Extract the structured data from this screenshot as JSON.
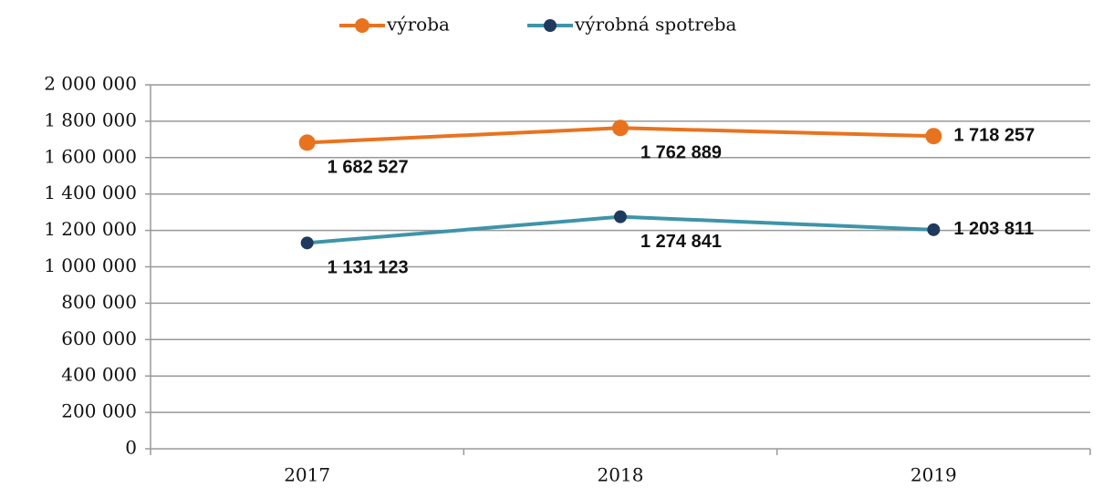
{
  "chart_data": {
    "type": "line",
    "categories": [
      "2017",
      "2018",
      "2019"
    ],
    "series": [
      {
        "name": "výroba",
        "color": "#e8731f",
        "marker_color": "#e8731f",
        "values": [
          1682527,
          1762889,
          1718257
        ],
        "value_labels": [
          "1 682 527",
          "1 762 889",
          "1 718 257"
        ]
      },
      {
        "name": "výrobná spotreba",
        "color": "#3f94a8",
        "marker_color": "#1f3a5f",
        "values": [
          1131123,
          1274841,
          1203811
        ],
        "value_labels": [
          "1 131 123",
          "1 274 841",
          "1 203 811"
        ]
      }
    ],
    "ylim": [
      0,
      2000000
    ],
    "yticks": [
      0,
      {
        "value": 200000,
        "label": "200 000"
      },
      {
        "value": 400000,
        "label": "400 000"
      },
      {
        "value": 600000,
        "label": "600 000"
      },
      {
        "value": 800000,
        "label": "800 000"
      },
      {
        "value": 1000000,
        "label": "1 000 000"
      },
      {
        "value": 1200000,
        "label": "1 200 000"
      },
      {
        "value": 1400000,
        "label": "1 400 000"
      },
      {
        "value": 1600000,
        "label": "1 600 000"
      },
      {
        "value": 1800000,
        "label": "1 800 000"
      },
      {
        "value": 2000000,
        "label": "2 000 000"
      }
    ],
    "grid": true,
    "legend": "top"
  }
}
